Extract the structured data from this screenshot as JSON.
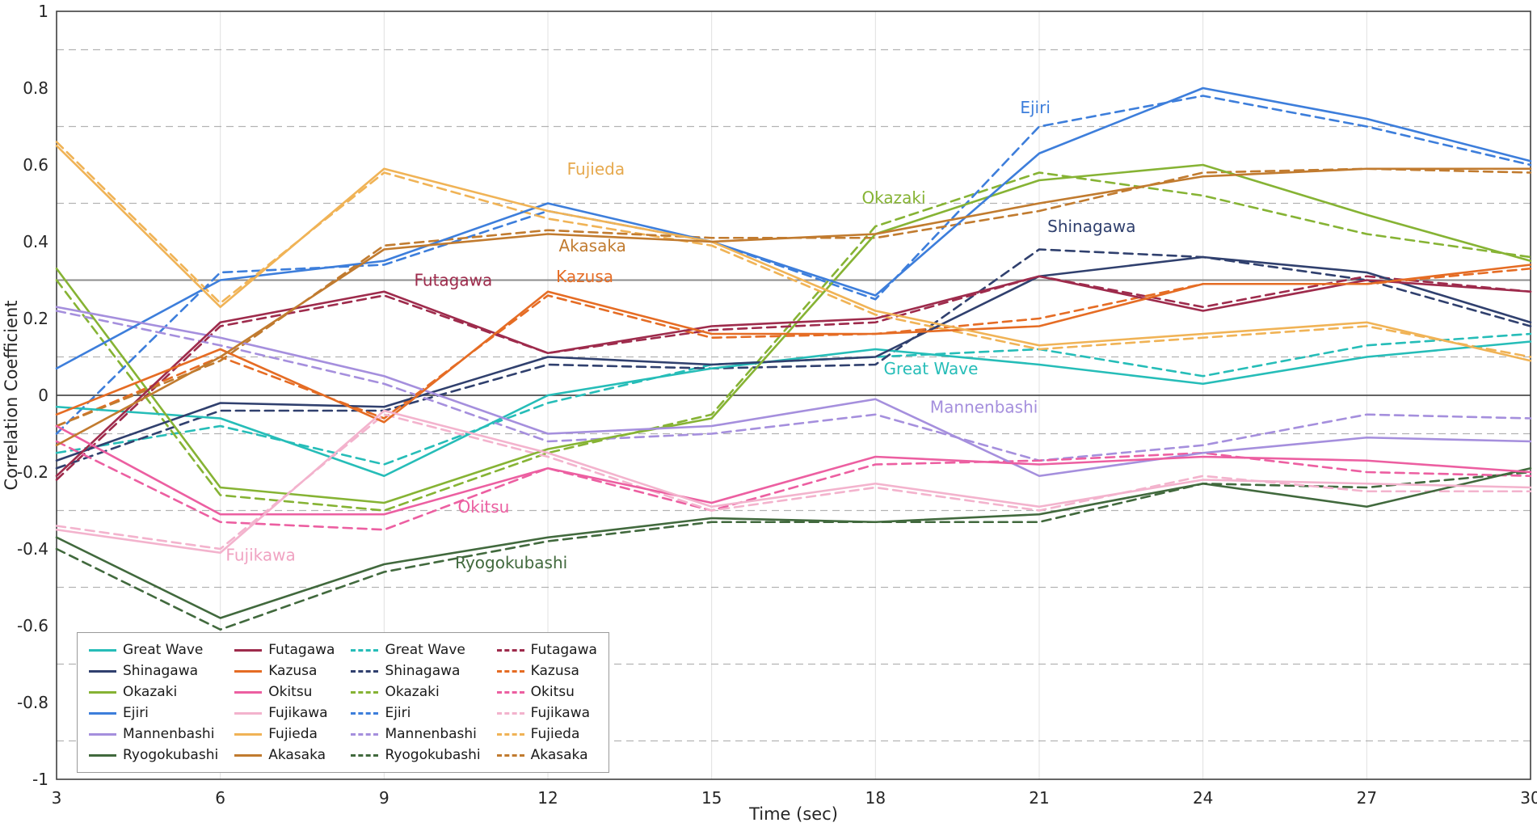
{
  "figure": {
    "background": "#ffffff"
  },
  "palette": {
    "Great Wave": "#26bdb8",
    "Shinagawa": "#30406e",
    "Okazaki": "#86b334",
    "Ejiri": "#3d7edb",
    "Mannenbashi": "#a58fdd",
    "Ryogokubashi": "#41693d",
    "Futagawa": "#9e2b4c",
    "Kazusa": "#e56c24",
    "Okitsu": "#ec5fa1",
    "Fujikawa": "#f3b3cd",
    "Fujieda": "#f0b356",
    "Akasaka": "#c17b2f"
  },
  "legend": {
    "columns": [
      {
        "style": "solid",
        "labels": [
          "Great Wave",
          "Shinagawa",
          "Okazaki",
          "Ejiri",
          "Mannenbashi",
          "Ryogokubashi"
        ]
      },
      {
        "style": "solid",
        "labels": [
          "Futagawa",
          "Kazusa",
          "Okitsu",
          "Fujikawa",
          "Fujieda",
          "Akasaka"
        ]
      },
      {
        "style": "dashed",
        "labels": [
          "Great Wave",
          "Shinagawa",
          "Okazaki",
          "Ejiri",
          "Mannenbashi",
          "Ryogokubashi"
        ]
      },
      {
        "style": "dashed",
        "labels": [
          "Futagawa",
          "Kazusa",
          "Okitsu",
          "Fujikawa",
          "Fujieda",
          "Akasaka"
        ]
      }
    ]
  },
  "chart_data": {
    "type": "line",
    "xlabel": "Time (sec)",
    "ylabel": "Correlation Coefficient",
    "xlim": [
      3,
      30
    ],
    "ylim": [
      -1,
      1
    ],
    "x": [
      3,
      6,
      9,
      12,
      15,
      18,
      21,
      24,
      27,
      30
    ],
    "xticks": [
      {
        "label": "3",
        "v": 3
      },
      {
        "label": "6",
        "v": 6
      },
      {
        "label": "9",
        "v": 9
      },
      {
        "label": "12",
        "v": 12
      },
      {
        "label": "15",
        "v": 15
      },
      {
        "label": "18",
        "v": 18
      },
      {
        "label": "21",
        "v": 21
      },
      {
        "label": "24",
        "v": 24
      },
      {
        "label": "27",
        "v": 27
      },
      {
        "label": "30",
        "v": 30
      }
    ],
    "yticks": [
      {
        "label": "1",
        "v": 1
      },
      {
        "label": "0.8",
        "v": 0.8
      },
      {
        "label": "0.6",
        "v": 0.6
      },
      {
        "label": "0.4",
        "v": 0.4
      },
      {
        "label": "0.2",
        "v": 0.2
      },
      {
        "label": "0",
        "v": 0
      },
      {
        "label": "-0.2",
        "v": -0.2
      },
      {
        "label": "-0.4",
        "v": -0.4
      },
      {
        "label": "-0.6",
        "v": -0.6
      },
      {
        "label": "-0.8",
        "v": -0.8
      },
      {
        "label": "-1",
        "v": -1
      }
    ],
    "grid": {
      "minor_dashed_y": [
        0.9,
        0.7,
        0.5,
        0.3,
        0.1,
        -0.1,
        -0.3,
        -0.5,
        -0.7,
        -0.9
      ],
      "ref_lines": [
        {
          "y": 0.3,
          "color": "#8c8c8c",
          "width": 2
        },
        {
          "y": 0,
          "color": "#4d4d4d",
          "width": 1.8
        }
      ]
    },
    "series": [
      {
        "name": "Great Wave",
        "style": "solid",
        "values": [
          -0.03,
          -0.06,
          -0.21,
          0.0,
          0.07,
          0.12,
          0.08,
          0.03,
          0.1,
          0.14
        ]
      },
      {
        "name": "Shinagawa",
        "style": "solid",
        "values": [
          -0.17,
          -0.02,
          -0.03,
          0.1,
          0.08,
          0.1,
          0.31,
          0.36,
          0.32,
          0.19
        ]
      },
      {
        "name": "Okazaki",
        "style": "solid",
        "values": [
          0.33,
          -0.24,
          -0.28,
          -0.14,
          -0.06,
          0.42,
          0.56,
          0.6,
          0.47,
          0.35
        ]
      },
      {
        "name": "Ejiri",
        "style": "solid",
        "values": [
          0.07,
          0.3,
          0.35,
          0.5,
          0.4,
          0.26,
          0.63,
          0.8,
          0.72,
          0.61
        ]
      },
      {
        "name": "Mannenbashi",
        "style": "solid",
        "values": [
          0.23,
          0.15,
          0.05,
          -0.1,
          -0.08,
          -0.01,
          -0.21,
          -0.15,
          -0.11,
          -0.12
        ]
      },
      {
        "name": "Ryogokubashi",
        "style": "solid",
        "values": [
          -0.37,
          -0.58,
          -0.44,
          -0.37,
          -0.32,
          -0.33,
          -0.31,
          -0.23,
          -0.29,
          -0.19
        ]
      },
      {
        "name": "Futagawa",
        "style": "solid",
        "values": [
          -0.21,
          0.19,
          0.27,
          0.11,
          0.18,
          0.2,
          0.31,
          0.22,
          0.3,
          0.27
        ]
      },
      {
        "name": "Kazusa",
        "style": "solid",
        "values": [
          -0.05,
          0.12,
          -0.07,
          0.27,
          0.16,
          0.16,
          0.18,
          0.29,
          0.29,
          0.34
        ]
      },
      {
        "name": "Okitsu",
        "style": "solid",
        "values": [
          -0.08,
          -0.31,
          -0.31,
          -0.19,
          -0.28,
          -0.16,
          -0.18,
          -0.16,
          -0.17,
          -0.2
        ]
      },
      {
        "name": "Fujikawa",
        "style": "solid",
        "values": [
          -0.35,
          -0.41,
          -0.04,
          -0.15,
          -0.29,
          -0.23,
          -0.29,
          -0.22,
          -0.23,
          -0.24
        ]
      },
      {
        "name": "Fujieda",
        "style": "solid",
        "values": [
          0.65,
          0.23,
          0.59,
          0.48,
          0.4,
          0.22,
          0.13,
          0.16,
          0.19,
          0.09
        ]
      },
      {
        "name": "Akasaka",
        "style": "solid",
        "values": [
          -0.13,
          0.1,
          0.38,
          0.42,
          0.4,
          0.42,
          0.5,
          0.57,
          0.59,
          0.59
        ]
      },
      {
        "name": "Great Wave",
        "style": "dashed",
        "values": [
          -0.15,
          -0.08,
          -0.18,
          -0.02,
          0.08,
          0.1,
          0.12,
          0.05,
          0.13,
          0.16
        ]
      },
      {
        "name": "Shinagawa",
        "style": "dashed",
        "values": [
          -0.19,
          -0.04,
          -0.04,
          0.08,
          0.07,
          0.08,
          0.38,
          0.36,
          0.3,
          0.18
        ]
      },
      {
        "name": "Okazaki",
        "style": "dashed",
        "values": [
          0.3,
          -0.26,
          -0.3,
          -0.15,
          -0.05,
          0.44,
          0.58,
          0.52,
          0.42,
          0.36
        ]
      },
      {
        "name": "Ejiri",
        "style": "dashed",
        "values": [
          -0.1,
          0.32,
          0.34,
          0.48,
          0.4,
          0.25,
          0.7,
          0.78,
          0.7,
          0.6
        ]
      },
      {
        "name": "Mannenbashi",
        "style": "dashed",
        "values": [
          0.22,
          0.13,
          0.03,
          -0.12,
          -0.1,
          -0.05,
          -0.17,
          -0.13,
          -0.05,
          -0.06
        ]
      },
      {
        "name": "Ryogokubashi",
        "style": "dashed",
        "values": [
          -0.4,
          -0.61,
          -0.46,
          -0.38,
          -0.33,
          -0.33,
          -0.33,
          -0.23,
          -0.24,
          -0.2
        ]
      },
      {
        "name": "Futagawa",
        "style": "dashed",
        "values": [
          -0.22,
          0.18,
          0.26,
          0.11,
          0.17,
          0.19,
          0.31,
          0.23,
          0.31,
          0.27
        ]
      },
      {
        "name": "Kazusa",
        "style": "dashed",
        "values": [
          -0.08,
          0.1,
          -0.06,
          0.26,
          0.15,
          0.16,
          0.2,
          0.29,
          0.29,
          0.33
        ]
      },
      {
        "name": "Okitsu",
        "style": "dashed",
        "values": [
          -0.12,
          -0.33,
          -0.35,
          -0.19,
          -0.3,
          -0.18,
          -0.17,
          -0.15,
          -0.2,
          -0.21
        ]
      },
      {
        "name": "Fujikawa",
        "style": "dashed",
        "values": [
          -0.34,
          -0.4,
          -0.05,
          -0.16,
          -0.3,
          -0.24,
          -0.3,
          -0.21,
          -0.25,
          -0.25
        ]
      },
      {
        "name": "Fujieda",
        "style": "dashed",
        "values": [
          0.66,
          0.24,
          0.58,
          0.46,
          0.39,
          0.21,
          0.12,
          0.15,
          0.18,
          0.1
        ]
      },
      {
        "name": "Akasaka",
        "style": "dashed",
        "values": [
          -0.08,
          0.09,
          0.39,
          0.43,
          0.41,
          0.41,
          0.48,
          0.58,
          0.59,
          0.58
        ]
      }
    ],
    "annotations": [
      {
        "text": "Ejiri",
        "x": 20.65,
        "y": 0.735,
        "color": "#3d7edb"
      },
      {
        "text": "Fujieda",
        "x": 12.35,
        "y": 0.575,
        "color": "#e6a94e"
      },
      {
        "text": "Okazaki",
        "x": 17.75,
        "y": 0.5,
        "color": "#86b334"
      },
      {
        "text": "Shinagawa",
        "x": 21.15,
        "y": 0.425,
        "color": "#30406e"
      },
      {
        "text": "Akasaka",
        "x": 12.2,
        "y": 0.375,
        "color": "#c17b2f"
      },
      {
        "text": "Futagawa",
        "x": 9.55,
        "y": 0.285,
        "color": "#9e2b4c"
      },
      {
        "text": "Kazusa",
        "x": 12.15,
        "y": 0.295,
        "color": "#e56c24"
      },
      {
        "text": "Great Wave",
        "x": 18.15,
        "y": 0.055,
        "color": "#26bdb8"
      },
      {
        "text": "Mannenbashi",
        "x": 19.0,
        "y": -0.045,
        "color": "#a58fdd"
      },
      {
        "text": "Okitsu",
        "x": 10.35,
        "y": -0.305,
        "color": "#ec5fa1"
      },
      {
        "text": "Fujikawa",
        "x": 6.1,
        "y": -0.43,
        "color": "#f0a3c2"
      },
      {
        "text": "Ryogokubashi",
        "x": 10.3,
        "y": -0.45,
        "color": "#41693d"
      }
    ]
  }
}
